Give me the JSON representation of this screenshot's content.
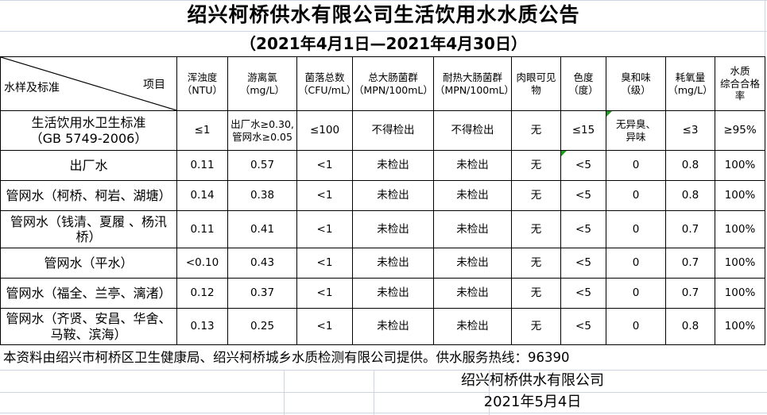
{
  "title": "绍兴柯桥供水有限公司生活饮用水水质公告",
  "subtitle": "（2021年4月1日—2021年4月30日）",
  "table": {
    "corner": {
      "left_label": "水样及标准",
      "right_label": "项目"
    },
    "headers": [
      "浑浊度\n（NTU）",
      "游离氯\n（mg/L）",
      "菌落总数\n（CFU/mL）",
      "总大肠菌群\n（MPN/100mL）",
      "耐热大肠菌群\n（MPN/100mL）",
      "肉眼可见物",
      "色度\n（度）",
      "臭和味\n（级）",
      "耗氧量\n（mg/L）",
      "水质\n综合合格率"
    ],
    "rows": [
      {
        "name": "生活饮用水卫生标准\n（GB 5749-2006）",
        "values": [
          "≤1",
          "出厂水≥0.30,\n管网水≥0.05",
          "≤100",
          "不得检出",
          "不得检出",
          "无",
          "≤15",
          "无异臭、\n异味",
          "≤3",
          "≥95%"
        ],
        "flags": [
          7
        ]
      },
      {
        "name": "出厂水",
        "values": [
          "0.11",
          "0.57",
          "<1",
          "未检出",
          "未检出",
          "无",
          "<5",
          "0",
          "0.8",
          "100%"
        ],
        "flags": [
          6
        ]
      },
      {
        "name": "管网水（柯桥、柯岩、湖塘）",
        "values": [
          "0.14",
          "0.38",
          "<1",
          "未检出",
          "未检出",
          "无",
          "<5",
          "0",
          "0.8",
          "100%"
        ],
        "flags": []
      },
      {
        "name": "管网水（钱清、夏履 、杨汛\n桥）",
        "values": [
          "0.11",
          "0.41",
          "<1",
          "未检出",
          "未检出",
          "无",
          "<5",
          "0",
          "0.7",
          "100%"
        ],
        "flags": []
      },
      {
        "name": "管网水（平水）",
        "values": [
          "<0.10",
          "0.43",
          "<1",
          "未检出",
          "未检出",
          "无",
          "<5",
          "0",
          "0.7",
          "100%"
        ],
        "flags": []
      },
      {
        "name": "管网水（福全、兰亭、漓渚）",
        "values": [
          "0.12",
          "0.37",
          "<1",
          "未检出",
          "未检出",
          "无",
          "<5",
          "0",
          "0.7",
          "100%"
        ],
        "flags": []
      },
      {
        "name": "管网水（齐贤、安昌、华舍、\n马鞍、滨海）",
        "values": [
          "0.13",
          "0.25",
          "<1",
          "未检出",
          "未检出",
          "无",
          "<5",
          "0",
          "0.8",
          "100%"
        ],
        "flags": []
      }
    ]
  },
  "footer": {
    "note": "本资料由绍兴市柯桥区卫生健康局、绍兴柯桥城乡水质检测有限公司提供。供水服务热线：96390",
    "company": "绍兴柯桥供水有限公司",
    "date": "2021年5月4日"
  },
  "colors": {
    "border": "#000000",
    "grid_faint": "#ccd6e3",
    "flag_green": "#1e9e1e"
  }
}
